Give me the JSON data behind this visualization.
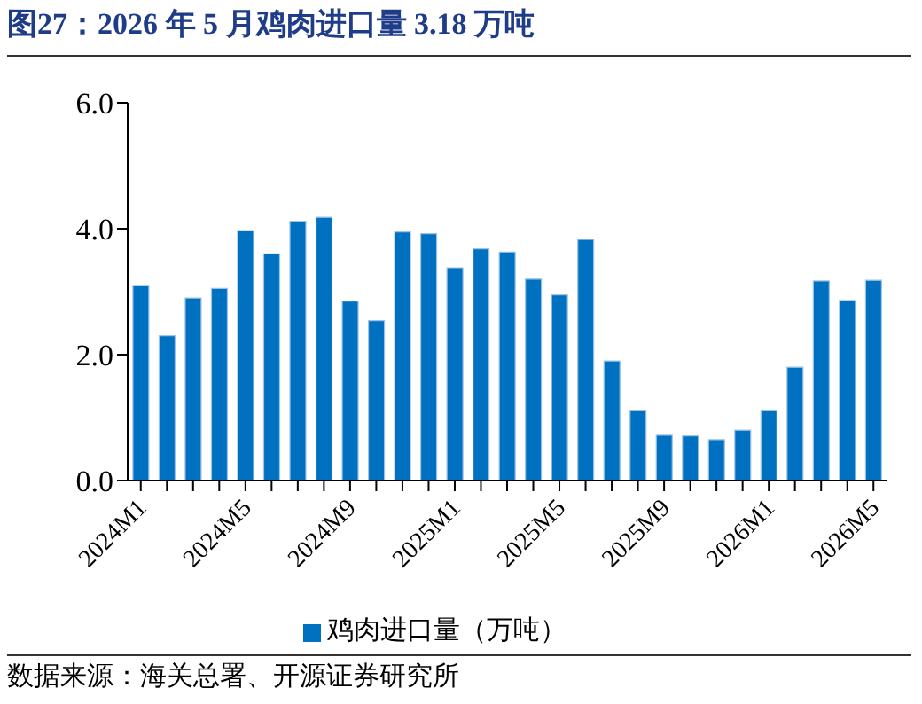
{
  "chart_data": {
    "type": "bar",
    "title": "图27：2026 年 5 月鸡肉进口量 3.18 万吨",
    "categories": [
      "2024M1",
      null,
      null,
      null,
      "2024M5",
      null,
      null,
      null,
      "2024M9",
      null,
      null,
      null,
      "2025M1",
      null,
      null,
      null,
      "2025M5",
      null,
      null,
      null,
      "2025M9",
      null,
      null,
      null,
      "2026M1",
      null,
      null,
      null,
      "2026M5"
    ],
    "series": [
      {
        "name": "鸡肉进口量（万吨）",
        "color": "#0070c0",
        "values": [
          3.1,
          2.3,
          2.9,
          3.05,
          3.97,
          3.6,
          4.12,
          4.18,
          2.85,
          2.54,
          3.95,
          3.92,
          3.38,
          3.68,
          3.63,
          3.2,
          2.95,
          3.83,
          1.9,
          1.12,
          0.72,
          0.71,
          0.65,
          0.8,
          1.12,
          1.8,
          3.17,
          2.86,
          3.18
        ]
      }
    ],
    "ylim": [
      0,
      6
    ],
    "yticks": [
      {
        "value": 0,
        "label": "0.0"
      },
      {
        "value": 2,
        "label": "2.0"
      },
      {
        "value": 4,
        "label": "4.0"
      },
      {
        "value": 6,
        "label": "6.0"
      }
    ],
    "grid": false,
    "legend": "bottom",
    "annotations": [
      "数据来源：海关总署、开源证券研究所"
    ]
  }
}
